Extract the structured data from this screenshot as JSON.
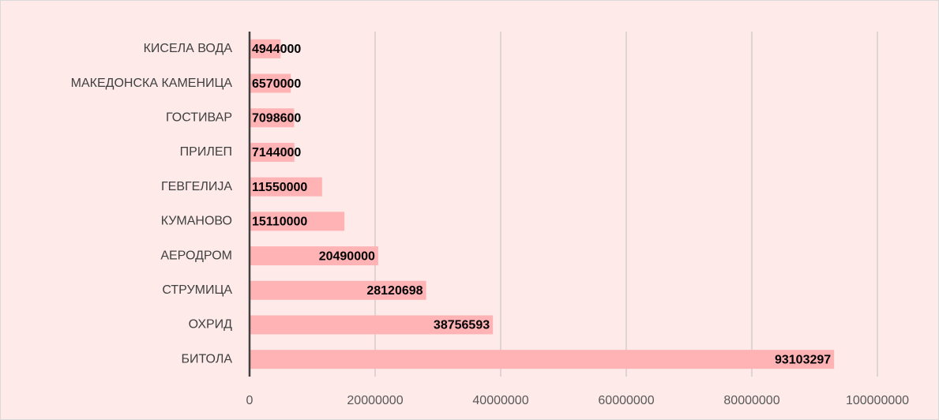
{
  "chart_data": {
    "type": "bar",
    "orientation": "horizontal",
    "categories": [
      "КИСЕЛА ВОДА",
      "МАКЕДОНСКА КАМЕНИЦА",
      "ГОСТИВАР",
      "ПРИЛЕП",
      "ГЕВГЕЛИЈА",
      "КУМАНОВО",
      "АЕРОДРОМ",
      "СТРУМИЦА",
      "ОХРИД",
      "БИТОЛА"
    ],
    "values": [
      4944000,
      6570000,
      7098600,
      7144000,
      11550000,
      15110000,
      20490000,
      28120698,
      38756593,
      93103297
    ],
    "color": "#ffb3b5",
    "xlim": [
      0,
      100000000
    ],
    "xticks": [
      0,
      20000000,
      40000000,
      60000000,
      80000000,
      100000000
    ],
    "grid": true,
    "data_labels": true
  }
}
